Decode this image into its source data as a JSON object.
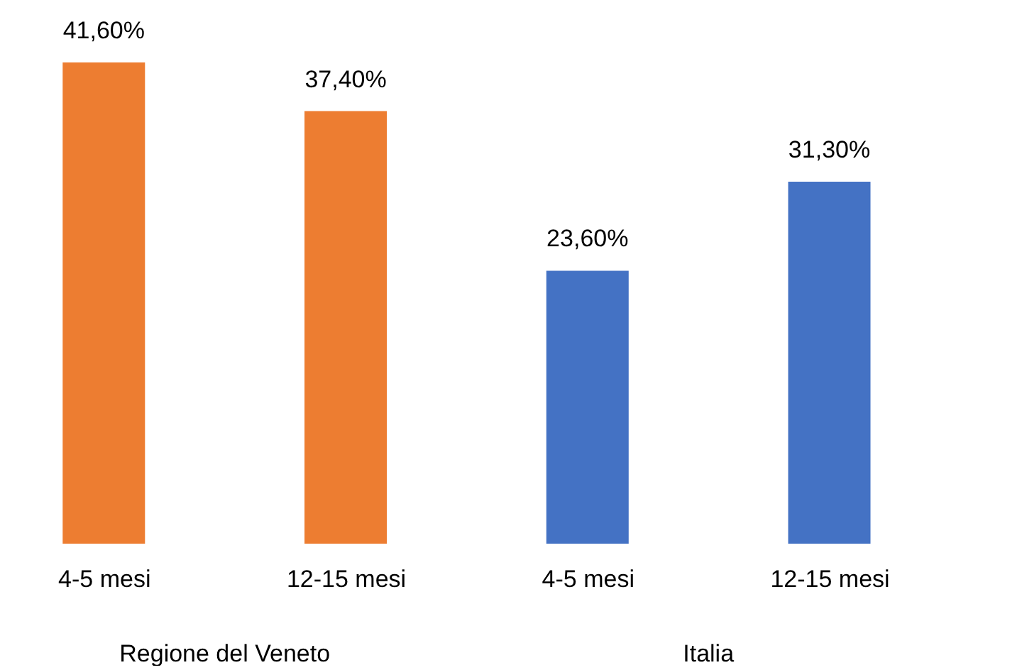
{
  "chart_data": {
    "type": "bar",
    "categories": [
      "4-5 mesi",
      "12-15 mesi",
      "4-5 mesi",
      "12-15 mesi"
    ],
    "series": [
      {
        "color": "#ed7d31",
        "values": [
          41.6,
          37.4,
          null,
          null
        ],
        "value_labels": [
          "41,60%",
          "37,40%",
          null,
          null
        ]
      },
      {
        "color": "#4472c4",
        "values": [
          null,
          null,
          23.6,
          31.3
        ],
        "value_labels": [
          null,
          null,
          "23,60%",
          "31,30%"
        ]
      }
    ],
    "annotations": [
      "Regione del Veneto",
      "Italia"
    ],
    "grid": false
  }
}
